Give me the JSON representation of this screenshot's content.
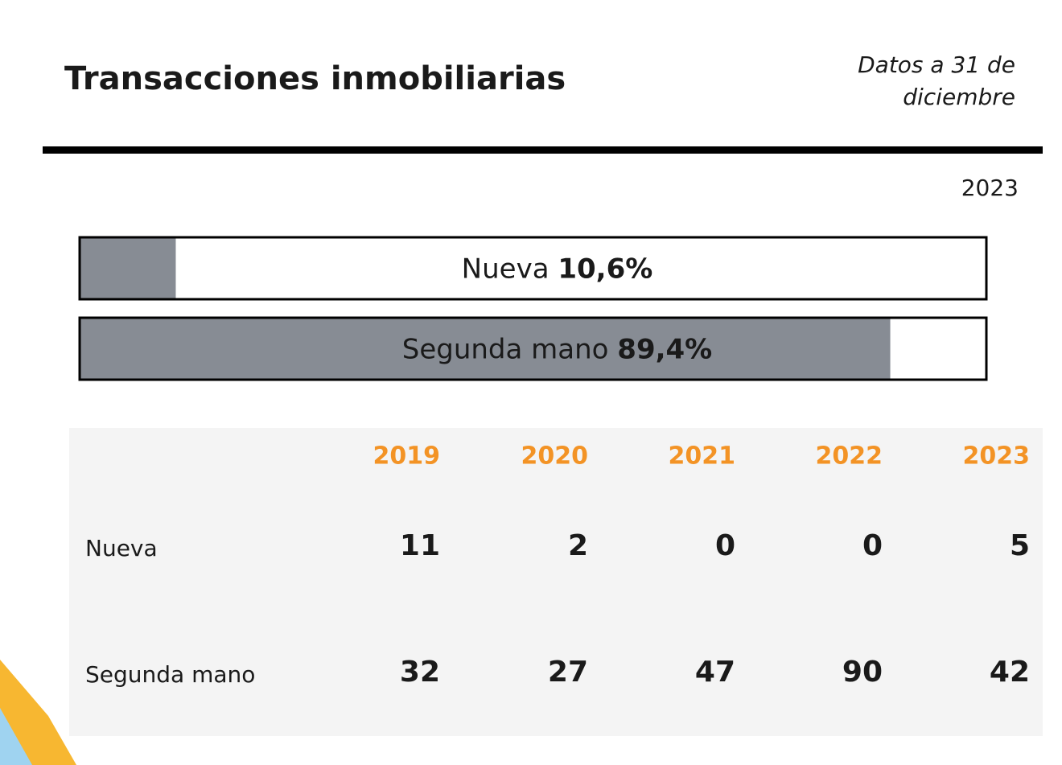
{
  "header": {
    "title": "Transacciones inmobiliarias",
    "note": [
      "Datos a 31 de",
      "diciembre"
    ]
  },
  "chart_data": {
    "type": "bar",
    "orientation": "horizontal",
    "subtitle": "2023",
    "categories": [
      "Nueva",
      "Segunda mano"
    ],
    "values": [
      10.6,
      89.4
    ],
    "value_labels": [
      "10,6%",
      "89,4%"
    ],
    "xlim": [
      0,
      100
    ],
    "color": "#878c94"
  },
  "table": {
    "columns": [
      "2019",
      "2020",
      "2021",
      "2022",
      "2023"
    ],
    "rows": [
      {
        "label": "Nueva",
        "values": [
          11,
          2,
          0,
          0,
          5
        ]
      },
      {
        "label": "Segunda mano",
        "values": [
          32,
          27,
          47,
          90,
          42
        ]
      }
    ]
  }
}
